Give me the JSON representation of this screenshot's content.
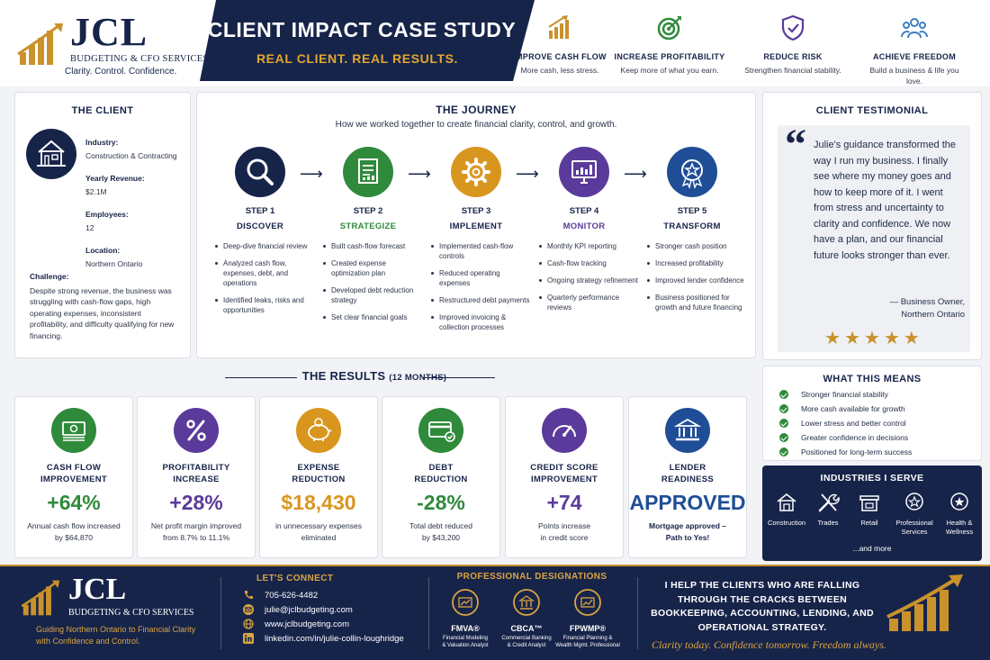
{
  "brand": {
    "name": "JCL",
    "subtitle": "BUDGETING & CFO SERVICES",
    "tagline": "Clarity. Control. Confidence."
  },
  "banner": {
    "title": "CLIENT IMPACT CASE STUDY",
    "subtitle": "REAL CLIENT. REAL RESULTS."
  },
  "benefits": [
    {
      "title": "IMPROVE CASH FLOW",
      "desc": "More cash, less stress.",
      "icon": "bar-chart-icon"
    },
    {
      "title": "INCREASE PROFITABILITY",
      "desc": "Keep more of what you earn.",
      "icon": "target-icon"
    },
    {
      "title": "REDUCE RISK",
      "desc": "Strengthen financial stability.",
      "icon": "shield-icon"
    },
    {
      "title": "ACHIEVE FREEDOM",
      "desc": "Build a business & life you love.",
      "icon": "people-icon"
    }
  ],
  "client": {
    "heading": "THE CLIENT",
    "icon": "house-icon",
    "facts": [
      {
        "label": "Industry:",
        "value": "Construction & Contracting"
      },
      {
        "label": "Yearly Revenue:",
        "value": "$2.1M"
      },
      {
        "label": "Employees:",
        "value": "12"
      },
      {
        "label": "Location:",
        "value": "Northern Ontario"
      }
    ],
    "challenge_label": "Challenge:",
    "challenge_text": "Despite strong revenue, the business was struggling with cash-flow gaps, high operating expenses, inconsistent profitability, and difficulty qualifying for new financing."
  },
  "journey": {
    "title": "THE JOURNEY",
    "subtitle": "How we worked together to create financial clarity, control, and growth.",
    "arrow": "⟶",
    "steps": [
      {
        "number": "STEP 1",
        "name": "DISCOVER",
        "color": "#17244a",
        "icon": "magnifier-icon",
        "items": [
          "Deep-dive financial review",
          "Analyzed cash flow, expenses, debt, and operations",
          "Identified leaks, risks and opportunities"
        ]
      },
      {
        "number": "STEP 2",
        "name": "STRATEGIZE",
        "color": "#2f8a3b",
        "icon": "document-icon",
        "items": [
          "Built cash-flow forecast",
          "Created expense optimization plan",
          "Developed debt reduction strategy",
          "Set clear financial goals"
        ]
      },
      {
        "number": "STEP 3",
        "name": "IMPLEMENT",
        "color": "#d9961f",
        "icon": "gear-icon",
        "items": [
          "Implemented cash-flow controls",
          "Reduced operating expenses",
          "Restructured debt payments",
          "Improved invoicing & collection processes"
        ]
      },
      {
        "number": "STEP 4",
        "name": "MONITOR",
        "color": "#5a3a9a",
        "icon": "monitor-icon",
        "items": [
          "Monthly KPI reporting",
          "Cash-flow tracking",
          "Ongoing strategy refinement",
          "Quarterly performance reviews"
        ]
      },
      {
        "number": "STEP 5",
        "name": "TRANSFORM",
        "color": "#1f4e96",
        "icon": "star-badge-icon",
        "items": [
          "Stronger cash position",
          "Increased profitability",
          "Improved lender confidence",
          "Business positioned for growth and future financing"
        ]
      }
    ]
  },
  "testimonial": {
    "heading": "CLIENT TESTIMONIAL",
    "quote_mark": "“",
    "text": "Julie's guidance transformed the way I run my business. I finally see where my money goes and how to keep more of it. I went from stress and uncertainty to clarity and confidence. We now have a plan, and our financial future looks stronger than ever.",
    "author": "— Business Owner,",
    "author_location": "Northern Ontario",
    "stars": "★★★★★",
    "rating": 5
  },
  "results": {
    "title": "THE RESULTS",
    "period": "(12 MONTHS)",
    "metrics": [
      {
        "label1": "CASH FLOW",
        "label2": "IMPROVEMENT",
        "value": "+64%",
        "desc1": "Annual cash flow increased",
        "desc2": "by $64,870",
        "color": "#2f8a3b",
        "icon": "money-stack-icon"
      },
      {
        "label1": "PROFITABILITY",
        "label2": "INCREASE",
        "value": "+28%",
        "desc1": "Net profit margin improved",
        "desc2": "from 8.7% to 11.1%",
        "color": "#5a3a9a",
        "icon": "percent-icon"
      },
      {
        "label1": "EXPENSE",
        "label2": "REDUCTION",
        "value": "$18,430",
        "desc1": "in unnecessary expenses",
        "desc2": "eliminated",
        "color": "#d9961f",
        "icon": "piggy-bank-icon"
      },
      {
        "label1": "DEBT",
        "label2": "REDUCTION",
        "value": "-28%",
        "desc1": "Total debt reduced",
        "desc2": "by $43,200",
        "color": "#2f8a3b",
        "icon": "credit-card-icon"
      },
      {
        "label1": "CREDIT SCORE",
        "label2": "IMPROVEMENT",
        "value": "+74",
        "desc1": "Points increase",
        "desc2": "in credit score",
        "color": "#5a3a9a",
        "icon": "gauge-icon"
      },
      {
        "label1": "LENDER",
        "label2": "READINESS",
        "value": "APPROVED",
        "desc1": "Mortgage approved –",
        "desc2": "Path to Yes!",
        "color": "#1f4e96",
        "icon": "bank-icon"
      }
    ]
  },
  "means": {
    "heading": "WHAT THIS MEANS",
    "items": [
      "Stronger financial stability",
      "More cash available for growth",
      "Lower stress and better control",
      "Greater confidence in decisions",
      "Positioned for long-term success"
    ]
  },
  "industries": {
    "heading": "INDUSTRIES I SERVE",
    "items": [
      {
        "label": "Construction",
        "icon": "construction-house-icon"
      },
      {
        "label": "Trades",
        "icon": "tools-icon"
      },
      {
        "label": "Retail",
        "icon": "storefront-icon"
      },
      {
        "label": "Professional Services",
        "icon": "professional-badge-icon"
      },
      {
        "label": "Health & Wellness",
        "icon": "health-badge-icon"
      }
    ],
    "more": "...and more"
  },
  "footer": {
    "tagline": "Guiding Northern Ontario to Financial Clarity with Confidence and Control.",
    "connect_heading": "LET'S CONNECT",
    "contacts": [
      {
        "icon": "phone-icon",
        "text": "705-626-4482"
      },
      {
        "icon": "email-icon",
        "text": "julie@jclbudgeting.com"
      },
      {
        "icon": "globe-icon",
        "text": "www.jclbudgeting.com"
      },
      {
        "icon": "linkedin-icon",
        "text": "linkedin.com/in/julie-collin-loughridge"
      }
    ],
    "designations_heading": "PROFESSIONAL DESIGNATIONS",
    "designations": [
      {
        "name": "FMVA®",
        "desc1": "Financial Modeling",
        "desc2": "& Valuation Analyst"
      },
      {
        "name": "CBCA™",
        "desc1": "Commercial Banking",
        "desc2": "& Credit Analyst"
      },
      {
        "name": "FPWMP®",
        "desc1": "Financial Planning &",
        "desc2": "Wealth Mgmt. Professional"
      }
    ],
    "pitch": "I HELP THE CLIENTS WHO ARE FALLING THROUGH THE CRACKS BETWEEN BOOKKEEPING, ACCOUNTING, LENDING, AND OPERATIONAL STRATEGY.",
    "slogan": "Clarity today. Confidence tomorrow. Freedom always."
  },
  "colors": {
    "navy": "#17244a",
    "gold": "#c9922a",
    "green": "#2f8a3b",
    "purple": "#5a3a9a",
    "orange": "#d9961f",
    "blue": "#1f4e96"
  }
}
